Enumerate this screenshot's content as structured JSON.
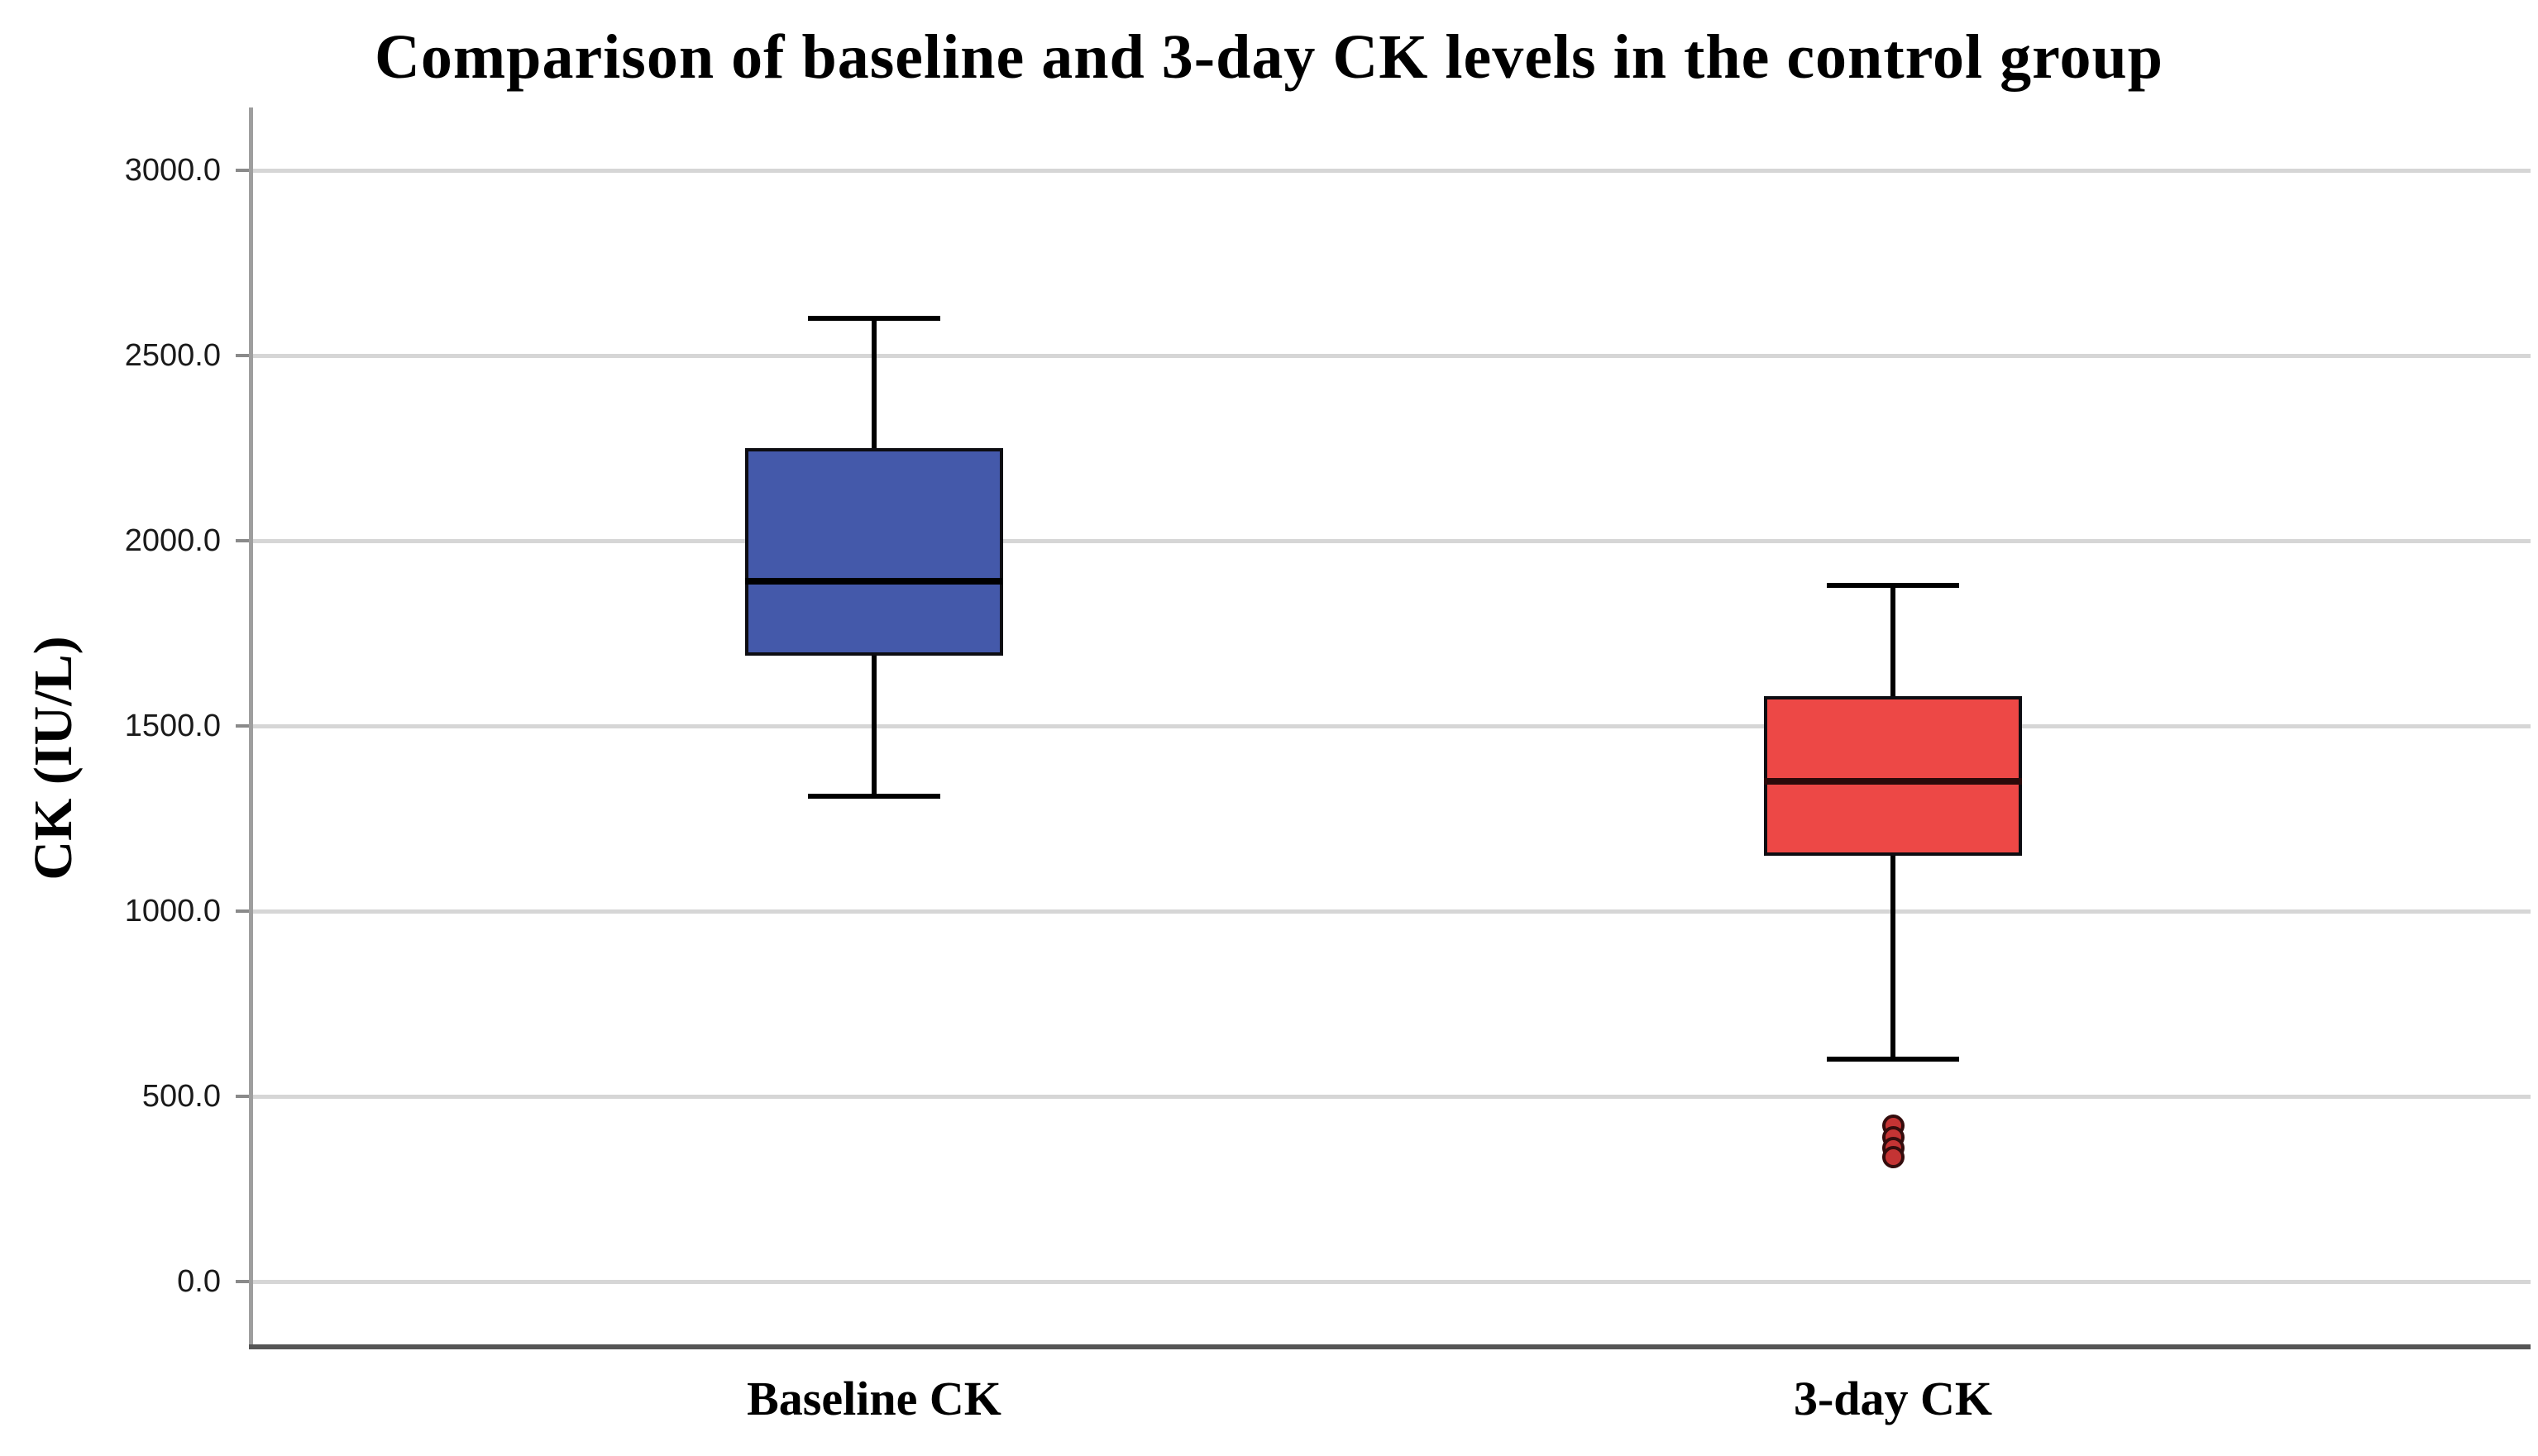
{
  "chart_data": {
    "type": "box",
    "title": "Comparison of baseline and 3-day CK levels in the control group",
    "xlabel": "",
    "ylabel": "CK (IU/L)",
    "ylim": [
      -170,
      3170
    ],
    "grid": "horizontal",
    "legend": "none",
    "y_ticks": [
      {
        "value": 3000,
        "label": "3000.0"
      },
      {
        "value": 2500,
        "label": "2500.0"
      },
      {
        "value": 2000,
        "label": "2000.0"
      },
      {
        "value": 1500,
        "label": "1500.0"
      },
      {
        "value": 1000,
        "label": "1000.0"
      },
      {
        "value": 500,
        "label": "500.0"
      },
      {
        "value": 0,
        "label": "0.0"
      }
    ],
    "categories": [
      "Baseline CK",
      "3-day CK"
    ],
    "series": [
      {
        "name": "Baseline CK",
        "fill_color": "#4459AA",
        "median_color": "#000000",
        "whisker_low": 1310,
        "q1": 1690,
        "median": 1890,
        "q3": 2250,
        "whisker_high": 2600,
        "outliers": []
      },
      {
        "name": "3-day CK",
        "fill_color": "#ED4846",
        "median_color": "#2b0a0a",
        "whisker_low": 600,
        "q1": 1150,
        "median": 1350,
        "q3": 1580,
        "whisker_high": 1880,
        "outliers": [
          420,
          390,
          360,
          335
        ]
      }
    ],
    "outlier_style": {
      "fill": "#c43434",
      "stroke": "#340d0d"
    },
    "colors": {
      "gridline": "#d6d6d6",
      "y_axis_line": "#9e9e9e",
      "x_axis_line": "#555555",
      "tick_mark": "#8a8a8a",
      "background": "#ffffff"
    }
  }
}
